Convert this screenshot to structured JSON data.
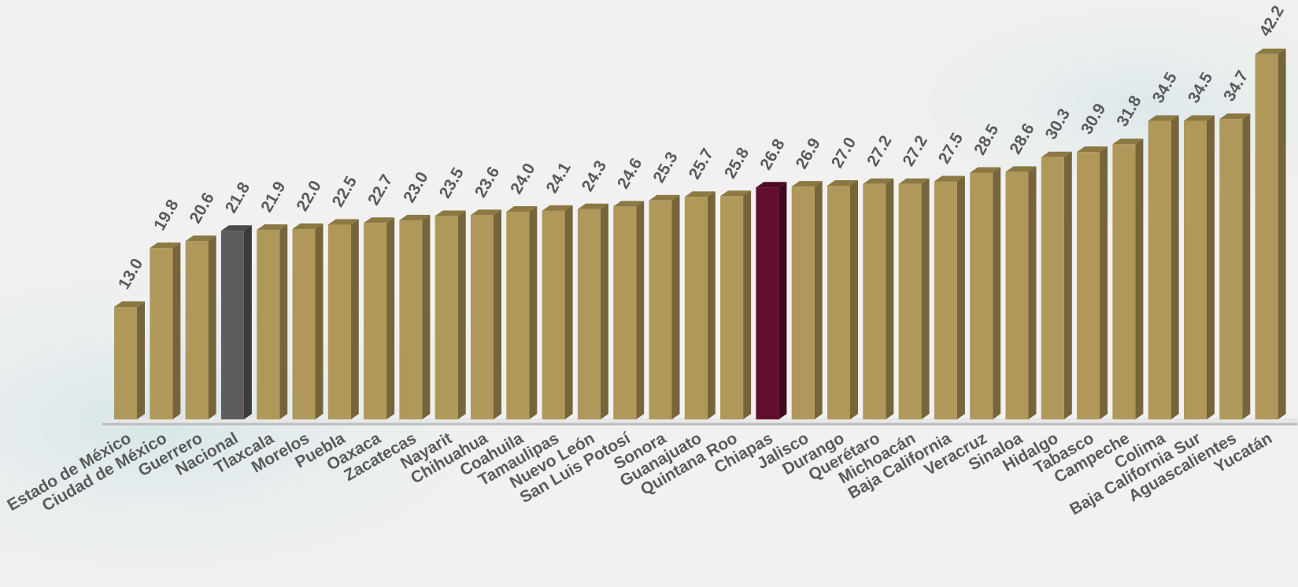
{
  "chart_data": {
    "type": "bar",
    "categories": [
      "Estado de México",
      "Ciudad de México",
      "Guerrero",
      "Nacional",
      "Tlaxcala",
      "Morelos",
      "Puebla",
      "Oaxaca",
      "Zacatecas",
      "Nayarit",
      "Chihuahua",
      "Coahuila",
      "Tamaulipas",
      "Nuevo León",
      "San Luis Potosí",
      "Sonora",
      "Guanajuato",
      "Quintana Roo",
      "Chiapas",
      "Jalisco",
      "Durango",
      "Querétaro",
      "Michoacán",
      "Baja California",
      "Veracruz",
      "Sinaloa",
      "Hidalgo",
      "Tabasco",
      "Campeche",
      "Colima",
      "Baja California Sur",
      "Aguascalientes",
      "Yucatán"
    ],
    "values": [
      13.0,
      19.8,
      20.6,
      21.8,
      21.9,
      22.0,
      22.5,
      22.7,
      23.0,
      23.5,
      23.6,
      24.0,
      24.1,
      24.3,
      24.6,
      25.3,
      25.7,
      25.8,
      26.8,
      26.9,
      27.0,
      27.2,
      27.2,
      27.5,
      28.5,
      28.6,
      30.3,
      30.9,
      31.8,
      34.5,
      34.5,
      34.7,
      42.2
    ],
    "value_labels": [
      "13.0",
      "19.8",
      "20.6",
      "21.8",
      "21.9",
      "22.0",
      "22.5",
      "22.7",
      "23.0",
      "23.5",
      "23.6",
      "24.0",
      "24.1",
      "24.3",
      "24.6",
      "25.3",
      "25.7",
      "25.8",
      "26.8",
      "26.9",
      "27.0",
      "27.2",
      "27.2",
      "27.5",
      "28.5",
      "28.6",
      "30.3",
      "30.9",
      "31.8",
      "34.5",
      "34.5",
      "34.7",
      "42.2"
    ],
    "title": "",
    "xlabel": "",
    "ylabel": "",
    "ylim": [
      0,
      45
    ],
    "style": "3d",
    "grid": false,
    "legend": "none",
    "colors": {
      "default": "#b0985a",
      "default_side": "#76653a",
      "default_top": "#8c7843",
      "highlights": {
        "Nacional": {
          "face": "#5d5d5d",
          "side": "#3c3c3c",
          "top": "#4a4a4a"
        },
        "Chiapas": {
          "face": "#620e2f",
          "side": "#3e0a1e",
          "top": "#4f0b25"
        }
      },
      "label": "#5a5a5a",
      "floor": "#e8e8e8",
      "floor_edge": "#bdbdbd"
    }
  }
}
